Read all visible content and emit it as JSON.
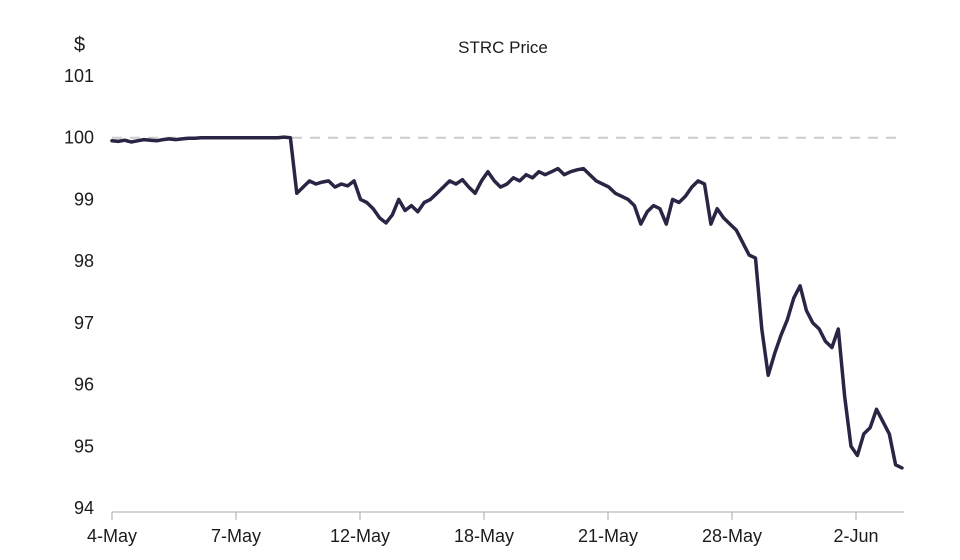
{
  "chart_data": {
    "type": "line",
    "title": "STRC Price",
    "ylabel": "$",
    "xlabel": "",
    "ylim": [
      94,
      101
    ],
    "yticks": [
      "94",
      "95",
      "96",
      "97",
      "98",
      "99",
      "100",
      "101"
    ],
    "x_tick_labels": [
      "4-May",
      "7-May",
      "12-May",
      "18-May",
      "21-May",
      "28-May",
      "2-Jun"
    ],
    "grid": false,
    "legend": "none",
    "reference_line": {
      "value": 100,
      "style": "dashed",
      "color": "#cccccc"
    },
    "colors": {
      "line": "#2b2545",
      "axis": "#aaaaaa",
      "text": "#1c1c1c"
    },
    "series": [
      {
        "values": [
          99.95,
          99.94,
          99.96,
          99.93,
          99.95,
          99.97,
          99.96,
          99.95,
          99.97,
          99.98,
          99.97,
          99.98,
          99.99,
          99.99,
          100.0,
          100.0,
          100.0,
          100.0,
          100.0,
          100.0,
          100.0,
          100.0,
          100.0,
          100.0,
          100.0,
          100.0,
          100.0,
          100.01,
          100.0,
          99.1,
          99.2,
          99.3,
          99.25,
          99.28,
          99.3,
          99.2,
          99.25,
          99.22,
          99.3,
          99.0,
          98.95,
          98.85,
          98.7,
          98.62,
          98.75,
          99.0,
          98.82,
          98.9,
          98.8,
          98.95,
          99.0,
          99.1,
          99.2,
          99.3,
          99.25,
          99.32,
          99.2,
          99.1,
          99.3,
          99.45,
          99.3,
          99.2,
          99.25,
          99.35,
          99.3,
          99.4,
          99.35,
          99.45,
          99.4,
          99.45,
          99.5,
          99.4,
          99.45,
          99.48,
          99.5,
          99.4,
          99.3,
          99.25,
          99.2,
          99.1,
          99.05,
          99.0,
          98.9,
          98.6,
          98.8,
          98.9,
          98.85,
          98.6,
          99.0,
          98.95,
          99.05,
          99.2,
          99.3,
          99.25,
          98.6,
          98.85,
          98.7,
          98.6,
          98.5,
          98.3,
          98.1,
          98.05,
          96.9,
          96.15,
          96.5,
          96.8,
          97.05,
          97.4,
          97.6,
          97.2,
          97.0,
          96.9,
          96.7,
          96.6,
          96.9,
          95.8,
          95.0,
          94.85,
          95.2,
          95.3,
          95.6,
          95.4,
          95.2,
          94.7,
          94.65
        ]
      }
    ]
  }
}
